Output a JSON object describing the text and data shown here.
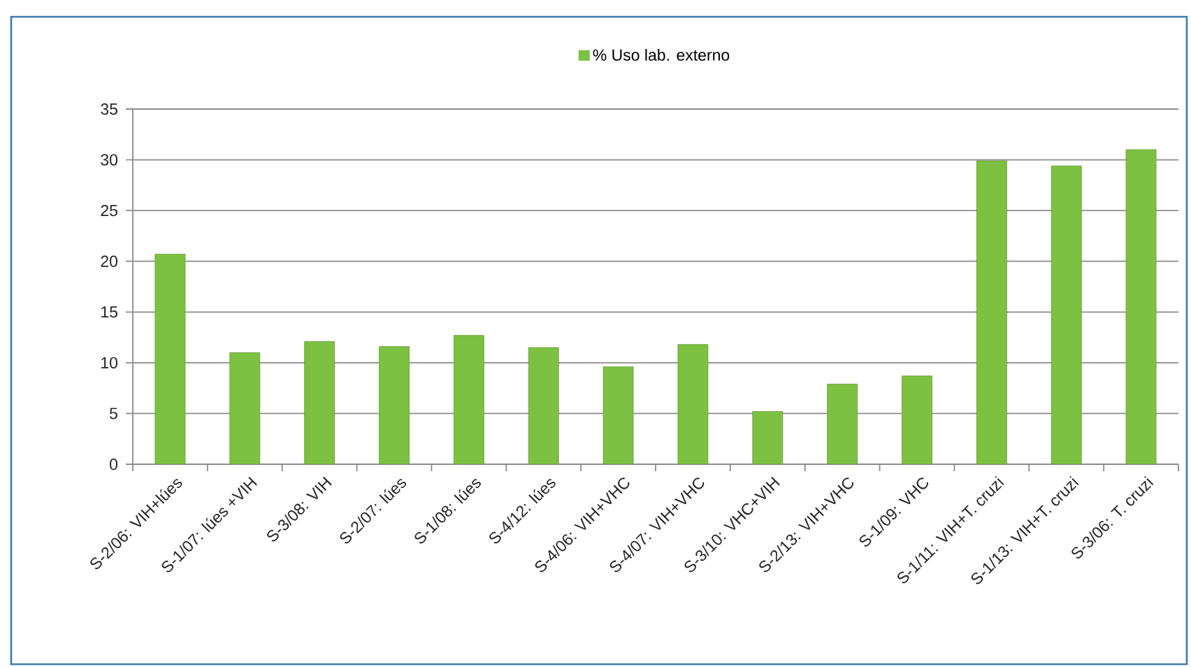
{
  "chart_data": {
    "type": "bar",
    "categories": [
      "S-2/06: VIH+lúes",
      "S-1/07: lúes +VIH",
      "S-3/08: VIH",
      "S-2/07: lúes",
      "S-1/08: lúes",
      "S-4/12: lúes",
      "S-4/06: VIH+VHC",
      "S-4/07: VIH+VHC",
      "S-3/10: VHC+VIH",
      "S-2/13: VIH+VHC",
      "S-1/09: VHC",
      "S-1/11: VIH+T. cruzi",
      "S-1/13: VIH+T. cruzi",
      "S-3/06: T. cruzi"
    ],
    "series": [
      {
        "name": "% Uso lab. externo",
        "color": "#7dc142",
        "values": [
          20.7,
          11.0,
          12.1,
          11.6,
          12.7,
          11.5,
          9.6,
          11.8,
          5.2,
          7.9,
          8.7,
          29.9,
          29.4,
          31.0
        ]
      }
    ],
    "ylim": [
      0,
      35
    ],
    "yticks": [
      0,
      5,
      10,
      15,
      20,
      25,
      30,
      35
    ],
    "grid": "y",
    "legend": "top"
  }
}
